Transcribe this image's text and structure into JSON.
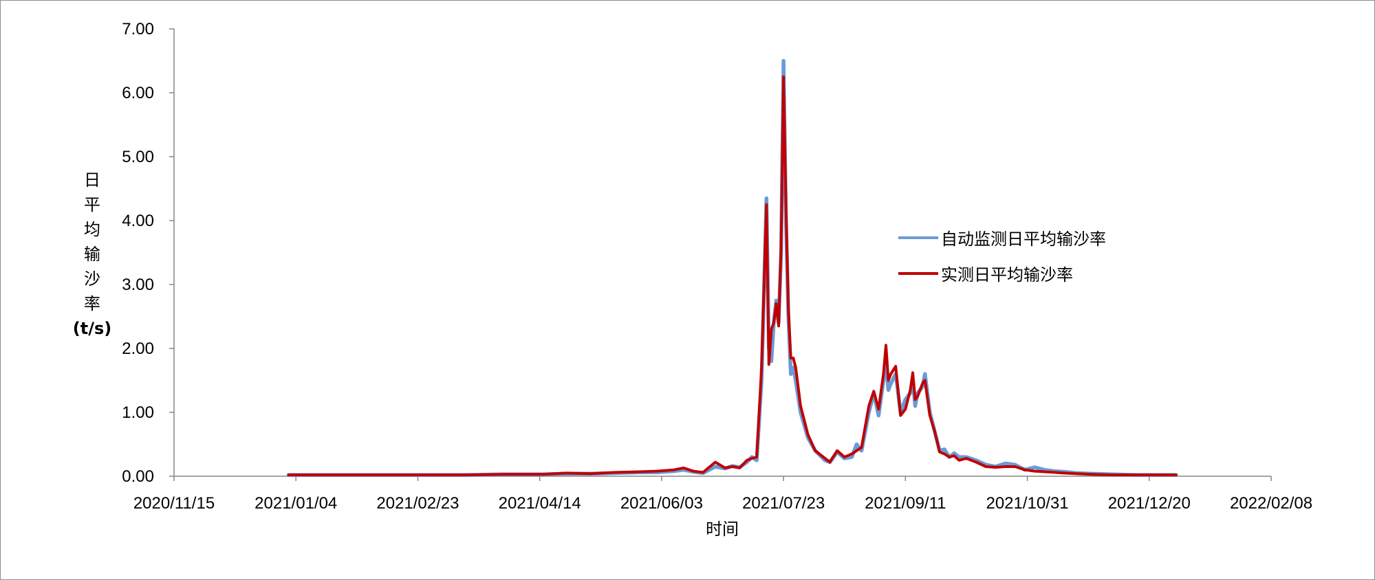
{
  "chart_data": {
    "type": "line",
    "title": "",
    "xlabel": "时间",
    "ylabel_chars": [
      "日",
      "平",
      "均",
      "输",
      "沙",
      "率"
    ],
    "ylabel_unit": "(t/s)",
    "ylim": [
      0,
      7
    ],
    "yticks": [
      "0.00",
      "1.00",
      "2.00",
      "3.00",
      "4.00",
      "5.00",
      "6.00",
      "7.00"
    ],
    "xlim": [
      "2020/11/15",
      "2022/02/08"
    ],
    "xticks": [
      "2020/11/15",
      "2021/01/04",
      "2021/02/23",
      "2021/04/14",
      "2021/06/03",
      "2021/07/23",
      "2021/09/11",
      "2021/10/31",
      "2021/12/20",
      "2022/02/08"
    ],
    "grid": false,
    "legend_position": "right",
    "series": [
      {
        "name": "自动监测日平均输沙率",
        "color": "#6a9bd6",
        "points": [
          [
            "2021/01/01",
            0.02
          ],
          [
            "2021/01/10",
            0.02
          ],
          [
            "2021/01/20",
            0.02
          ],
          [
            "2021/02/01",
            0.02
          ],
          [
            "2021/02/15",
            0.02
          ],
          [
            "2021/03/01",
            0.02
          ],
          [
            "2021/03/15",
            0.02
          ],
          [
            "2021/03/30",
            0.03
          ],
          [
            "2021/04/05",
            0.03
          ],
          [
            "2021/04/15",
            0.03
          ],
          [
            "2021/04/25",
            0.04
          ],
          [
            "2021/05/05",
            0.04
          ],
          [
            "2021/05/15",
            0.05
          ],
          [
            "2021/05/25",
            0.06
          ],
          [
            "2021/06/01",
            0.06
          ],
          [
            "2021/06/08",
            0.08
          ],
          [
            "2021/06/12",
            0.1
          ],
          [
            "2021/06/16",
            0.07
          ],
          [
            "2021/06/20",
            0.05
          ],
          [
            "2021/06/25",
            0.15
          ],
          [
            "2021/06/29",
            0.12
          ],
          [
            "2021/07/02",
            0.16
          ],
          [
            "2021/07/05",
            0.14
          ],
          [
            "2021/07/08",
            0.22
          ],
          [
            "2021/07/10",
            0.3
          ],
          [
            "2021/07/12",
            0.25
          ],
          [
            "2021/07/14",
            1.5
          ],
          [
            "2021/07/16",
            4.35
          ],
          [
            "2021/07/17",
            2.0
          ],
          [
            "2021/07/18",
            1.8
          ],
          [
            "2021/07/19",
            2.4
          ],
          [
            "2021/07/20",
            2.75
          ],
          [
            "2021/07/21",
            2.4
          ],
          [
            "2021/07/22",
            3.5
          ],
          [
            "2021/07/23",
            6.5
          ],
          [
            "2021/07/24",
            4.0
          ],
          [
            "2021/07/25",
            2.5
          ],
          [
            "2021/07/26",
            1.6
          ],
          [
            "2021/07/27",
            1.7
          ],
          [
            "2021/07/28",
            1.5
          ],
          [
            "2021/07/30",
            1.0
          ],
          [
            "2021/08/02",
            0.6
          ],
          [
            "2021/08/05",
            0.4
          ],
          [
            "2021/08/09",
            0.25
          ],
          [
            "2021/08/11",
            0.22
          ],
          [
            "2021/08/14",
            0.38
          ],
          [
            "2021/08/17",
            0.28
          ],
          [
            "2021/08/20",
            0.3
          ],
          [
            "2021/08/22",
            0.5
          ],
          [
            "2021/08/24",
            0.4
          ],
          [
            "2021/08/27",
            1.0
          ],
          [
            "2021/08/29",
            1.3
          ],
          [
            "2021/08/31",
            0.95
          ],
          [
            "2021/09/02",
            1.5
          ],
          [
            "2021/09/03",
            1.8
          ],
          [
            "2021/09/04",
            1.35
          ],
          [
            "2021/09/05",
            1.45
          ],
          [
            "2021/09/07",
            1.6
          ],
          [
            "2021/09/09",
            1.0
          ],
          [
            "2021/09/11",
            1.2
          ],
          [
            "2021/09/13",
            1.3
          ],
          [
            "2021/09/14",
            1.5
          ],
          [
            "2021/09/15",
            1.1
          ],
          [
            "2021/09/16",
            1.3
          ],
          [
            "2021/09/18",
            1.4
          ],
          [
            "2021/09/19",
            1.6
          ],
          [
            "2021/09/21",
            1.0
          ],
          [
            "2021/09/23",
            0.7
          ],
          [
            "2021/09/25",
            0.4
          ],
          [
            "2021/09/27",
            0.42
          ],
          [
            "2021/09/29",
            0.3
          ],
          [
            "2021/10/01",
            0.36
          ],
          [
            "2021/10/03",
            0.3
          ],
          [
            "2021/10/06",
            0.3
          ],
          [
            "2021/10/10",
            0.25
          ],
          [
            "2021/10/14",
            0.18
          ],
          [
            "2021/10/18",
            0.15
          ],
          [
            "2021/10/22",
            0.2
          ],
          [
            "2021/10/26",
            0.18
          ],
          [
            "2021/10/30",
            0.1
          ],
          [
            "2021/11/03",
            0.14
          ],
          [
            "2021/11/07",
            0.1
          ],
          [
            "2021/11/11",
            0.08
          ],
          [
            "2021/11/15",
            0.07
          ],
          [
            "2021/11/20",
            0.05
          ],
          [
            "2021/11/26",
            0.04
          ],
          [
            "2021/12/05",
            0.03
          ],
          [
            "2021/12/15",
            0.02
          ],
          [
            "2021/12/25",
            0.02
          ],
          [
            "2021/12/31",
            0.02
          ]
        ]
      },
      {
        "name": "实测日平均输沙率",
        "color": "#c00000",
        "points": [
          [
            "2021/01/01",
            0.02
          ],
          [
            "2021/01/10",
            0.02
          ],
          [
            "2021/01/20",
            0.02
          ],
          [
            "2021/02/01",
            0.02
          ],
          [
            "2021/02/15",
            0.02
          ],
          [
            "2021/03/01",
            0.02
          ],
          [
            "2021/03/15",
            0.02
          ],
          [
            "2021/03/30",
            0.03
          ],
          [
            "2021/04/05",
            0.03
          ],
          [
            "2021/04/15",
            0.03
          ],
          [
            "2021/04/25",
            0.05
          ],
          [
            "2021/05/05",
            0.04
          ],
          [
            "2021/05/15",
            0.06
          ],
          [
            "2021/05/25",
            0.07
          ],
          [
            "2021/06/01",
            0.08
          ],
          [
            "2021/06/08",
            0.1
          ],
          [
            "2021/06/12",
            0.13
          ],
          [
            "2021/06/16",
            0.08
          ],
          [
            "2021/06/20",
            0.06
          ],
          [
            "2021/06/25",
            0.22
          ],
          [
            "2021/06/29",
            0.13
          ],
          [
            "2021/07/02",
            0.15
          ],
          [
            "2021/07/05",
            0.13
          ],
          [
            "2021/07/08",
            0.25
          ],
          [
            "2021/07/10",
            0.28
          ],
          [
            "2021/07/12",
            0.3
          ],
          [
            "2021/07/14",
            1.7
          ],
          [
            "2021/07/16",
            4.25
          ],
          [
            "2021/07/17",
            1.75
          ],
          [
            "2021/07/18",
            2.3
          ],
          [
            "2021/07/19",
            2.4
          ],
          [
            "2021/07/20",
            2.7
          ],
          [
            "2021/07/21",
            2.35
          ],
          [
            "2021/07/22",
            3.6
          ],
          [
            "2021/07/23",
            6.25
          ],
          [
            "2021/07/24",
            4.2
          ],
          [
            "2021/07/25",
            2.6
          ],
          [
            "2021/07/26",
            1.85
          ],
          [
            "2021/07/27",
            1.85
          ],
          [
            "2021/07/28",
            1.7
          ],
          [
            "2021/07/30",
            1.1
          ],
          [
            "2021/08/02",
            0.65
          ],
          [
            "2021/08/05",
            0.4
          ],
          [
            "2021/08/09",
            0.28
          ],
          [
            "2021/08/11",
            0.22
          ],
          [
            "2021/08/14",
            0.4
          ],
          [
            "2021/08/17",
            0.3
          ],
          [
            "2021/08/20",
            0.35
          ],
          [
            "2021/08/22",
            0.4
          ],
          [
            "2021/08/24",
            0.45
          ],
          [
            "2021/08/27",
            1.1
          ],
          [
            "2021/08/29",
            1.33
          ],
          [
            "2021/08/31",
            1.05
          ],
          [
            "2021/09/02",
            1.6
          ],
          [
            "2021/09/03",
            2.05
          ],
          [
            "2021/09/04",
            1.5
          ],
          [
            "2021/09/05",
            1.6
          ],
          [
            "2021/09/07",
            1.72
          ],
          [
            "2021/09/09",
            0.95
          ],
          [
            "2021/09/11",
            1.05
          ],
          [
            "2021/09/13",
            1.35
          ],
          [
            "2021/09/14",
            1.62
          ],
          [
            "2021/09/15",
            1.2
          ],
          [
            "2021/09/16",
            1.25
          ],
          [
            "2021/09/18",
            1.45
          ],
          [
            "2021/09/19",
            1.5
          ],
          [
            "2021/09/21",
            0.95
          ],
          [
            "2021/09/23",
            0.7
          ],
          [
            "2021/09/25",
            0.38
          ],
          [
            "2021/09/27",
            0.35
          ],
          [
            "2021/09/29",
            0.3
          ],
          [
            "2021/10/01",
            0.32
          ],
          [
            "2021/10/03",
            0.25
          ],
          [
            "2021/10/06",
            0.28
          ],
          [
            "2021/10/10",
            0.22
          ],
          [
            "2021/10/14",
            0.15
          ],
          [
            "2021/10/18",
            0.14
          ],
          [
            "2021/10/22",
            0.15
          ],
          [
            "2021/10/26",
            0.15
          ],
          [
            "2021/10/30",
            0.1
          ],
          [
            "2021/11/03",
            0.08
          ],
          [
            "2021/11/07",
            0.07
          ],
          [
            "2021/11/11",
            0.06
          ],
          [
            "2021/11/15",
            0.05
          ],
          [
            "2021/11/20",
            0.04
          ],
          [
            "2021/11/26",
            0.03
          ],
          [
            "2021/12/05",
            0.02
          ],
          [
            "2021/12/15",
            0.02
          ],
          [
            "2021/12/25",
            0.02
          ],
          [
            "2021/12/31",
            0.02
          ]
        ]
      }
    ]
  }
}
